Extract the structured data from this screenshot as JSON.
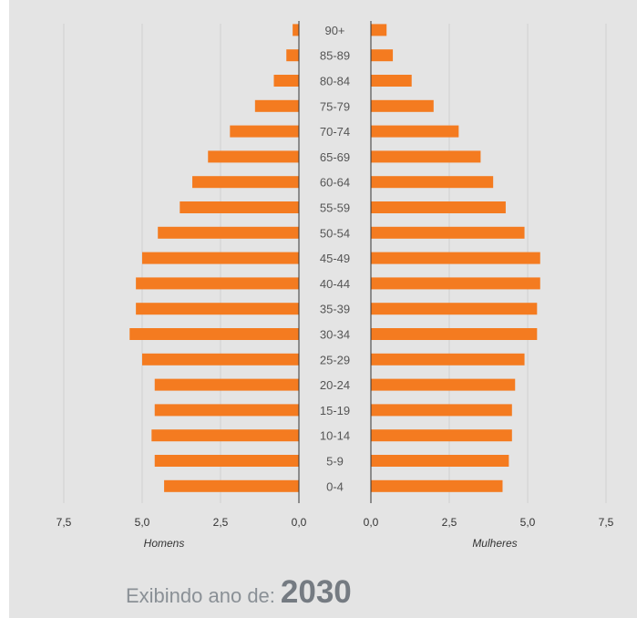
{
  "chart_data": {
    "type": "bar",
    "orientation": "horizontal",
    "layout": "population-pyramid",
    "categories": [
      "90+",
      "85-89",
      "80-84",
      "75-79",
      "70-74",
      "65-69",
      "60-64",
      "55-59",
      "50-54",
      "45-49",
      "40-44",
      "35-39",
      "30-34",
      "25-29",
      "20-24",
      "15-19",
      "10-14",
      "5-9",
      "0-4"
    ],
    "series": [
      {
        "name": "Homens",
        "values": [
          0.2,
          0.4,
          0.8,
          1.4,
          2.2,
          2.9,
          3.4,
          3.8,
          4.5,
          5.0,
          5.2,
          5.2,
          5.4,
          5.0,
          4.6,
          4.6,
          4.7,
          4.6,
          4.3
        ]
      },
      {
        "name": "Mulheres",
        "values": [
          0.5,
          0.7,
          1.3,
          2.0,
          2.8,
          3.5,
          3.9,
          4.3,
          4.9,
          5.4,
          5.4,
          5.3,
          5.3,
          4.9,
          4.6,
          4.5,
          4.5,
          4.4,
          4.2
        ]
      }
    ],
    "color": "#f47b20",
    "xlim": [
      0,
      7.5
    ],
    "ticks": [
      "7,5",
      "5,0",
      "2,5",
      "0,0"
    ],
    "ticks_right": [
      "0,0",
      "2,5",
      "5,0",
      "7,5"
    ],
    "xlabel_left": "Homens",
    "xlabel_right": "Mulheres",
    "grid": true
  },
  "footer": {
    "label": "Exibindo ano de:",
    "year": "2030"
  }
}
